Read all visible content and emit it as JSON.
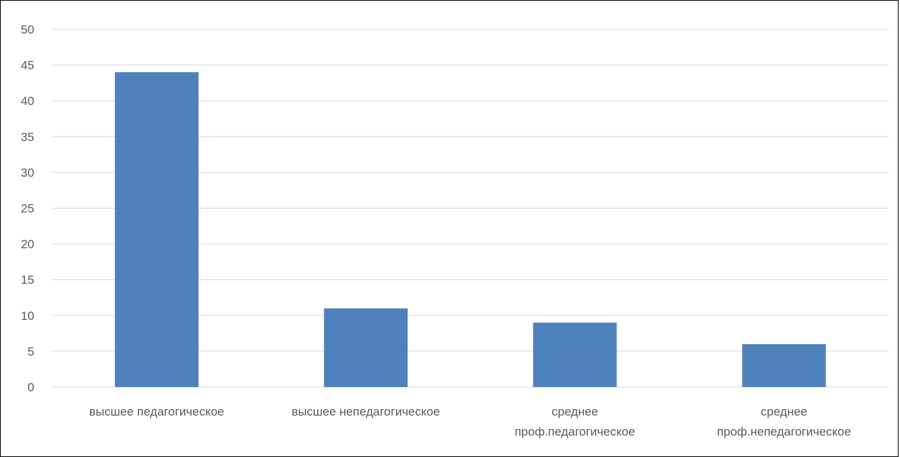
{
  "chart_data": {
    "type": "bar",
    "categories": [
      [
        "высшее педагогическое"
      ],
      [
        "высшее непедагогическое"
      ],
      [
        "среднее",
        "проф.педагогическое"
      ],
      [
        "среднее",
        "проф.непедагогическое"
      ]
    ],
    "values": [
      44,
      11,
      9,
      6
    ],
    "ylim": [
      0,
      50
    ],
    "yticks": [
      0,
      5,
      10,
      15,
      20,
      25,
      30,
      35,
      40,
      45,
      50
    ],
    "title": "",
    "xlabel": "",
    "ylabel": "",
    "grid": true,
    "legend": "none",
    "bar_color": "#4F81BD",
    "grid_color": "#D9D9D9"
  }
}
